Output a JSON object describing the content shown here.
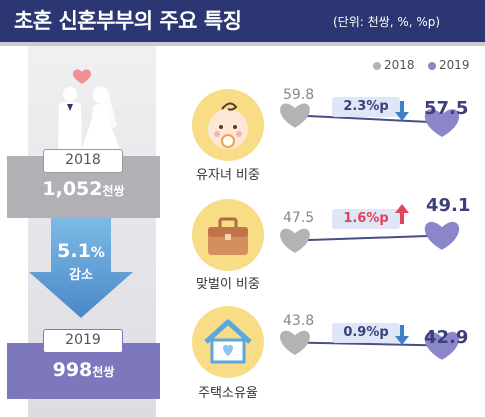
{
  "header": {
    "title": "초혼 신혼부부의 주요 특징",
    "unit_note": "(단위: 천쌍, %, %p)"
  },
  "legend": {
    "items": [
      {
        "label": "2018",
        "color": "#b3b3b3"
      },
      {
        "label": "2019",
        "color": "#8a86c9"
      }
    ]
  },
  "summary": {
    "year_2018": "2018",
    "value_2018": "1,052",
    "unit_2018": "천쌍",
    "change_pct": "5.1",
    "change_pct_unit": "%",
    "change_word": "감소",
    "year_2019": "2019",
    "value_2019": "998",
    "unit_2019": "천쌍"
  },
  "rows": [
    {
      "label": "유자녀 비중",
      "v2018": "59.8",
      "v2019": "57.5",
      "change": "2.3%p",
      "direction": "down"
    },
    {
      "label": "맞벌이 비중",
      "v2018": "47.5",
      "v2019": "49.1",
      "change": "1.6%p",
      "direction": "up"
    },
    {
      "label": "주택소유율",
      "v2018": "43.8",
      "v2019": "42.9",
      "change": "0.9%p",
      "direction": "down"
    }
  ],
  "chart_data": {
    "type": "line",
    "title": "초혼 신혼부부의 주요 특징",
    "x": [
      "2018",
      "2019"
    ],
    "series_by_metric": [
      {
        "metric": "유자녀 비중",
        "values": [
          59.8,
          57.5
        ],
        "change": -2.3
      },
      {
        "metric": "맞벌이 비중",
        "values": [
          47.5,
          49.1
        ],
        "change": 1.6
      },
      {
        "metric": "주택소유율",
        "values": [
          43.8,
          42.9
        ],
        "change": -0.9
      }
    ],
    "couples": {
      "2018": 1052,
      "2019": 998,
      "change_pct": -5.1,
      "unit": "천쌍"
    }
  }
}
